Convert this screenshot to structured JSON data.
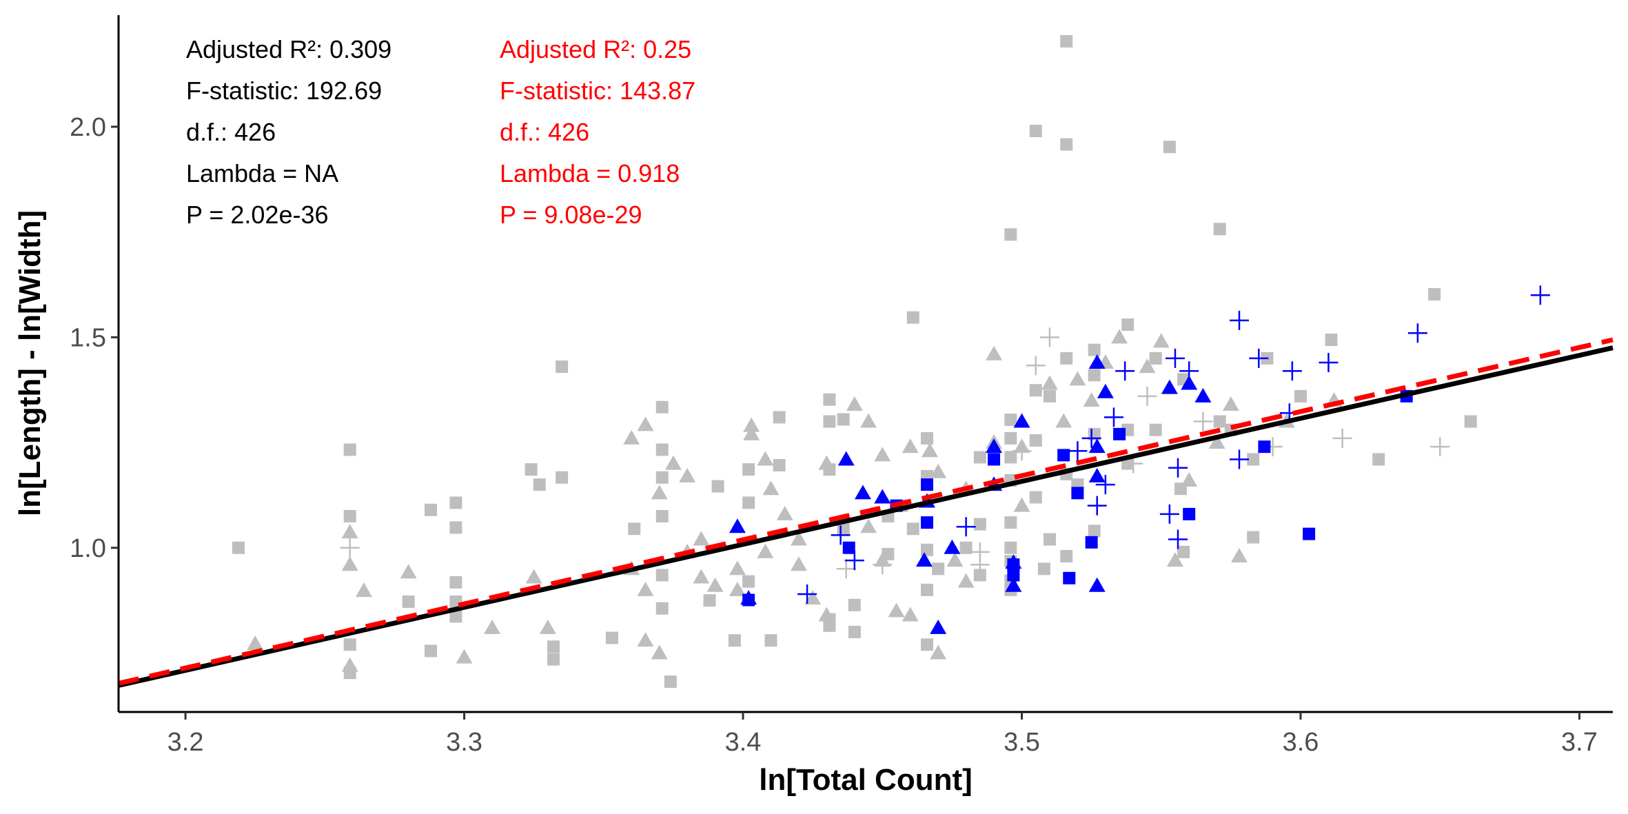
{
  "chart_data": {
    "type": "scatter",
    "xlabel": "ln[Total Count]",
    "ylabel": "ln[Length] - ln[Width]",
    "xlim": [
      3.176,
      3.712
    ],
    "ylim": [
      0.61,
      2.265
    ],
    "x_ticks": [
      "3.2",
      "3.3",
      "3.4",
      "3.5",
      "3.6",
      "3.7"
    ],
    "y_ticks": [
      "1.0",
      "1.5",
      "2.0"
    ],
    "grid": false,
    "legend": "none",
    "colors": {
      "background_points": "#bebebe",
      "highlight_points": "#0000ff",
      "ols_line": "#000000",
      "pgls_line": "#ff0000"
    },
    "annotations": {
      "ols": {
        "color": "#000000",
        "lines": [
          "Adjusted R²: 0.309",
          "F-statistic: 192.69",
          "d.f.: 426",
          "Lambda = NA",
          "P = 2.02e-36"
        ]
      },
      "pgls": {
        "color": "#ff0000",
        "lines": [
          "Adjusted R²: 0.25",
          "F-statistic: 143.87",
          "d.f.: 426",
          "Lambda = 0.918",
          "P = 9.08e-29"
        ]
      }
    },
    "fit_lines": [
      {
        "style": "solid",
        "color": "#000000",
        "x": [
          3.176,
          3.712
        ],
        "y": [
          0.673,
          1.475
        ]
      },
      {
        "style": "dashed",
        "color": "#ff0000",
        "x": [
          3.176,
          3.712
        ],
        "y": [
          0.678,
          1.494
        ]
      }
    ],
    "series": [
      {
        "color": "#bebebe",
        "shape": "square",
        "points": [
          [
            3.219,
            1.0
          ],
          [
            3.259,
            1.233
          ],
          [
            3.259,
            1.075
          ],
          [
            3.259,
            0.703
          ],
          [
            3.259,
            0.77
          ],
          [
            3.28,
            0.872
          ],
          [
            3.288,
            1.09
          ],
          [
            3.288,
            0.755
          ],
          [
            3.297,
            1.107
          ],
          [
            3.297,
            1.048
          ],
          [
            3.297,
            0.918
          ],
          [
            3.297,
            0.872
          ],
          [
            3.297,
            0.837
          ],
          [
            3.324,
            1.186
          ],
          [
            3.327,
            1.15
          ],
          [
            3.332,
            0.765
          ],
          [
            3.332,
            0.735
          ],
          [
            3.335,
            1.43
          ],
          [
            3.335,
            1.167
          ],
          [
            3.353,
            0.786
          ],
          [
            3.361,
            1.045
          ],
          [
            3.371,
            1.334
          ],
          [
            3.371,
            1.233
          ],
          [
            3.371,
            1.167
          ],
          [
            3.371,
            1.075
          ],
          [
            3.371,
            0.935
          ],
          [
            3.371,
            0.856
          ],
          [
            3.374,
            0.682
          ],
          [
            3.388,
            0.875
          ],
          [
            3.391,
            1.146
          ],
          [
            3.397,
            0.78
          ],
          [
            3.402,
            1.186
          ],
          [
            3.402,
            1.107
          ],
          [
            3.402,
            0.92
          ],
          [
            3.41,
            0.78
          ],
          [
            3.413,
            1.31
          ],
          [
            3.413,
            1.196
          ],
          [
            3.431,
            1.352
          ],
          [
            3.431,
            1.3
          ],
          [
            3.431,
            1.186
          ],
          [
            3.431,
            0.83
          ],
          [
            3.431,
            0.815
          ],
          [
            3.436,
            1.305
          ],
          [
            3.436,
            1.045
          ],
          [
            3.44,
            0.864
          ],
          [
            3.44,
            0.8
          ],
          [
            3.452,
            1.075
          ],
          [
            3.452,
            0.985
          ],
          [
            3.461,
            1.547
          ],
          [
            3.461,
            1.045
          ],
          [
            3.466,
            1.26
          ],
          [
            3.466,
            1.17
          ],
          [
            3.466,
            1.06
          ],
          [
            3.466,
            0.995
          ],
          [
            3.466,
            0.9
          ],
          [
            3.466,
            0.77
          ],
          [
            3.485,
            1.215
          ],
          [
            3.485,
            1.056
          ],
          [
            3.485,
            0.935
          ],
          [
            3.496,
            1.744
          ],
          [
            3.496,
            1.304
          ],
          [
            3.496,
            1.26
          ],
          [
            3.496,
            1.215
          ],
          [
            3.496,
            1.16
          ],
          [
            3.496,
            1.06
          ],
          [
            3.496,
            1.0
          ],
          [
            3.496,
            0.968
          ],
          [
            3.496,
            0.922
          ],
          [
            3.496,
            0.9
          ],
          [
            3.505,
            1.99
          ],
          [
            3.505,
            1.374
          ],
          [
            3.505,
            1.255
          ],
          [
            3.505,
            1.12
          ],
          [
            3.51,
            1.36
          ],
          [
            3.51,
            1.02
          ],
          [
            3.516,
            2.203
          ],
          [
            3.516,
            1.958
          ],
          [
            3.516,
            1.45
          ],
          [
            3.516,
            1.175
          ],
          [
            3.516,
            0.98
          ],
          [
            3.526,
            1.47
          ],
          [
            3.526,
            1.41
          ],
          [
            3.526,
            1.27
          ],
          [
            3.526,
            1.04
          ],
          [
            3.538,
            1.53
          ],
          [
            3.538,
            1.28
          ],
          [
            3.538,
            1.2
          ],
          [
            3.548,
            1.45
          ],
          [
            3.548,
            1.28
          ],
          [
            3.553,
            1.952
          ],
          [
            3.557,
            1.14
          ],
          [
            3.558,
            1.4
          ],
          [
            3.558,
            0.99
          ],
          [
            3.571,
            1.757
          ],
          [
            3.571,
            1.3
          ],
          [
            3.575,
            1.28
          ],
          [
            3.583,
            1.21
          ],
          [
            3.583,
            1.025
          ],
          [
            3.588,
            1.45
          ],
          [
            3.6,
            1.36
          ],
          [
            3.611,
            1.494
          ],
          [
            3.628,
            1.21
          ],
          [
            3.648,
            1.602
          ],
          [
            3.661,
            1.3
          ],
          [
            3.508,
            0.95
          ],
          [
            3.457,
            1.1
          ],
          [
            3.47,
            0.95
          ],
          [
            3.48,
            1.0
          ],
          [
            3.52,
            1.15
          ]
        ]
      },
      {
        "color": "#bebebe",
        "shape": "triangle",
        "points": [
          [
            3.225,
            0.772
          ],
          [
            3.259,
            1.037
          ],
          [
            3.259,
            0.96
          ],
          [
            3.259,
            0.72
          ],
          [
            3.264,
            0.898
          ],
          [
            3.28,
            0.942
          ],
          [
            3.3,
            0.74
          ],
          [
            3.31,
            0.81
          ],
          [
            3.325,
            0.93
          ],
          [
            3.33,
            0.81
          ],
          [
            3.365,
            1.292
          ],
          [
            3.36,
            1.26
          ],
          [
            3.36,
            0.95
          ],
          [
            3.365,
            0.9
          ],
          [
            3.365,
            0.78
          ],
          [
            3.37,
            0.75
          ],
          [
            3.37,
            1.13
          ],
          [
            3.375,
            1.2
          ],
          [
            3.38,
            1.17
          ],
          [
            3.38,
            0.99
          ],
          [
            3.385,
            0.93
          ],
          [
            3.39,
            0.91
          ],
          [
            3.398,
            0.9
          ],
          [
            3.403,
            1.29
          ],
          [
            3.403,
            1.27
          ],
          [
            3.408,
            1.21
          ],
          [
            3.41,
            1.14
          ],
          [
            3.415,
            1.08
          ],
          [
            3.42,
            1.02
          ],
          [
            3.42,
            0.96
          ],
          [
            3.425,
            0.88
          ],
          [
            3.43,
            0.84
          ],
          [
            3.43,
            1.2
          ],
          [
            3.44,
            1.34
          ],
          [
            3.445,
            1.3
          ],
          [
            3.45,
            1.22
          ],
          [
            3.45,
            0.97
          ],
          [
            3.455,
            0.85
          ],
          [
            3.46,
            1.24
          ],
          [
            3.47,
            1.18
          ],
          [
            3.47,
            0.75
          ],
          [
            3.48,
            1.14
          ],
          [
            3.48,
            0.92
          ],
          [
            3.49,
            1.46
          ],
          [
            3.49,
            1.25
          ],
          [
            3.5,
            1.24
          ],
          [
            3.5,
            1.1
          ],
          [
            3.51,
            1.39
          ],
          [
            3.515,
            1.3
          ],
          [
            3.52,
            1.4
          ],
          [
            3.525,
            1.35
          ],
          [
            3.53,
            1.44
          ],
          [
            3.535,
            1.5
          ],
          [
            3.545,
            1.43
          ],
          [
            3.55,
            1.49
          ],
          [
            3.555,
            0.97
          ],
          [
            3.56,
            1.16
          ],
          [
            3.57,
            1.25
          ],
          [
            3.575,
            1.34
          ],
          [
            3.578,
            0.98
          ],
          [
            3.595,
            1.3
          ],
          [
            3.612,
            1.35
          ],
          [
            3.467,
            1.23
          ],
          [
            3.46,
            0.84
          ],
          [
            3.476,
            0.97
          ],
          [
            3.445,
            1.05
          ],
          [
            3.398,
            0.95
          ],
          [
            3.385,
            1.02
          ],
          [
            3.408,
            0.99
          ]
        ]
      },
      {
        "color": "#bebebe",
        "shape": "plus",
        "points": [
          [
            3.259,
            1.0
          ],
          [
            3.5,
            1.23
          ],
          [
            3.505,
            1.433
          ],
          [
            3.51,
            1.5
          ],
          [
            3.54,
            1.2
          ],
          [
            3.545,
            1.36
          ],
          [
            3.565,
            1.3
          ],
          [
            3.59,
            1.24
          ],
          [
            3.615,
            1.26
          ],
          [
            3.65,
            1.24
          ],
          [
            3.437,
            0.95
          ],
          [
            3.45,
            0.96
          ],
          [
            3.485,
            0.99
          ],
          [
            3.485,
            0.96
          ]
        ]
      },
      {
        "color": "#0000ff",
        "shape": "square",
        "points": [
          [
            3.402,
            0.876
          ],
          [
            3.438,
            1.0
          ],
          [
            3.455,
            1.1
          ],
          [
            3.466,
            1.15
          ],
          [
            3.466,
            1.06
          ],
          [
            3.49,
            1.21
          ],
          [
            3.497,
            0.96
          ],
          [
            3.497,
            0.935
          ],
          [
            3.515,
            1.22
          ],
          [
            3.517,
            0.928
          ],
          [
            3.52,
            1.13
          ],
          [
            3.525,
            1.013
          ],
          [
            3.535,
            1.27
          ],
          [
            3.56,
            1.08
          ],
          [
            3.587,
            1.24
          ],
          [
            3.603,
            1.033
          ],
          [
            3.638,
            1.36
          ]
        ]
      },
      {
        "color": "#0000ff",
        "shape": "triangle",
        "points": [
          [
            3.398,
            1.05
          ],
          [
            3.402,
            0.88
          ],
          [
            3.437,
            1.21
          ],
          [
            3.443,
            1.13
          ],
          [
            3.45,
            1.12
          ],
          [
            3.465,
            0.97
          ],
          [
            3.466,
            1.11
          ],
          [
            3.47,
            0.81
          ],
          [
            3.475,
            1.0
          ],
          [
            3.49,
            1.24
          ],
          [
            3.49,
            1.15
          ],
          [
            3.5,
            1.3
          ],
          [
            3.497,
            0.965
          ],
          [
            3.497,
            0.91
          ],
          [
            3.527,
            1.44
          ],
          [
            3.527,
            1.24
          ],
          [
            3.527,
            1.17
          ],
          [
            3.527,
            0.91
          ],
          [
            3.53,
            1.37
          ],
          [
            3.553,
            1.38
          ],
          [
            3.56,
            1.39
          ],
          [
            3.565,
            1.36
          ]
        ]
      },
      {
        "color": "#0000ff",
        "shape": "plus",
        "points": [
          [
            3.423,
            0.89
          ],
          [
            3.48,
            1.05
          ],
          [
            3.52,
            1.23
          ],
          [
            3.525,
            1.26
          ],
          [
            3.527,
            1.1
          ],
          [
            3.53,
            1.15
          ],
          [
            3.533,
            1.31
          ],
          [
            3.537,
            1.42
          ],
          [
            3.553,
            1.08
          ],
          [
            3.555,
            1.45
          ],
          [
            3.556,
            1.19
          ],
          [
            3.556,
            1.02
          ],
          [
            3.56,
            1.42
          ],
          [
            3.578,
            1.54
          ],
          [
            3.578,
            1.21
          ],
          [
            3.585,
            1.45
          ],
          [
            3.596,
            1.32
          ],
          [
            3.597,
            1.42
          ],
          [
            3.61,
            1.44
          ],
          [
            3.642,
            1.51
          ],
          [
            3.686,
            1.6
          ],
          [
            3.435,
            1.03
          ],
          [
            3.44,
            0.97
          ]
        ]
      }
    ]
  }
}
